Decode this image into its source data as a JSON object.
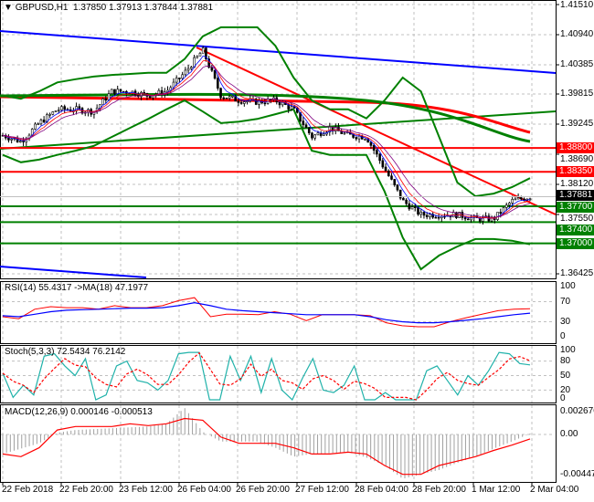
{
  "header": {
    "symbol": "GBPUSD,H1",
    "open": "1.37850",
    "high": "1.37913",
    "low": "1.37844",
    "close": "1.37881"
  },
  "price_axis": [
    "1.41510",
    "1.40940",
    "1.40385",
    "1.39815",
    "1.39245",
    "1.38690",
    "1.38120",
    "1.37550",
    "1.36425"
  ],
  "price_tags": [
    {
      "value": "1.38800",
      "color": "#ff0000"
    },
    {
      "value": "1.38350",
      "color": "#ff0000"
    },
    {
      "value": "1.37881",
      "color": "#000000"
    },
    {
      "value": "1.37700",
      "color": "#008000"
    },
    {
      "value": "1.37400",
      "color": "#008000"
    },
    {
      "value": "1.37000",
      "color": "#008000"
    }
  ],
  "time_axis": [
    "22 Feb 2018",
    "22 Feb 20:00",
    "23 Feb 12:00",
    "26 Feb 04:00",
    "26 Feb 20:00",
    "27 Feb 12:00",
    "28 Feb 04:00",
    "28 Feb 20:00",
    "1 Mar 12:00",
    "2 Mar 04:00"
  ],
  "rsi": {
    "label": "RSI(14) 55.4317  ->MA(18) 47.1977",
    "axis": [
      "100",
      "70",
      "30",
      "0"
    ]
  },
  "stoch": {
    "label": "Stoch(5,3,3) 72.5434 76.2142",
    "axis": [
      "100",
      "80",
      "50",
      "20",
      "0"
    ]
  },
  "macd": {
    "label": "MACD(12,26,9) 0.000146 -0.000513",
    "axis": [
      "0.002676",
      "0.00",
      "-0.004472"
    ]
  },
  "colors": {
    "bull": "#000000",
    "up_line": "#0000ff",
    "resistance": "#ff0000",
    "support": "#008000",
    "bands": "#008000"
  },
  "chart_data": {
    "type": "line",
    "close": [
      1.3904,
      1.3892,
      1.3927,
      1.3953,
      1.3953,
      1.3949,
      1.3987,
      1.3987,
      1.3979,
      1.3987,
      1.4022,
      1.4065,
      1.3979,
      1.397,
      1.3967,
      1.397,
      1.3953,
      1.3901,
      1.3918,
      1.3904,
      1.3901,
      1.3841,
      1.378,
      1.3754,
      1.3754,
      1.3754,
      1.3746,
      1.3746,
      1.378,
      1.3788
    ],
    "bollinger_upper": [
      1.3979,
      1.3973,
      1.3987,
      1.4004,
      1.401,
      1.4015,
      1.4018,
      1.402,
      1.4022,
      1.4022,
      1.4048,
      1.4091,
      1.4108,
      1.4108,
      1.4108,
      1.4073,
      1.4013,
      1.397,
      1.3953,
      1.3953,
      1.3936,
      1.397,
      1.4013,
      1.3987,
      1.3901,
      1.3815,
      1.3789,
      1.3794,
      1.3806,
      1.3823
    ],
    "bollinger_lower": [
      1.3867,
      1.3853,
      1.3858,
      1.3867,
      1.3875,
      1.3884,
      1.3901,
      1.3918,
      1.3935,
      1.3953,
      1.397,
      1.3949,
      1.3927,
      1.393,
      1.3935,
      1.3944,
      1.3953,
      1.3875,
      1.3867,
      1.3867,
      1.3867,
      1.3798,
      1.3711,
      1.3651,
      1.3677,
      1.3694,
      1.3708,
      1.3708,
      1.3705,
      1.3698
    ],
    "levels": {
      "resistance": [
        1.388,
        1.3835
      ],
      "support": [
        1.377,
        1.374,
        1.37
      ]
    },
    "rsi": [
      40,
      36,
      55,
      60,
      58,
      58,
      55,
      62,
      58,
      58,
      62,
      72,
      78,
      40,
      45,
      45,
      44,
      50,
      45,
      32,
      44,
      44,
      44,
      42,
      28,
      22,
      20,
      20,
      30,
      38,
      45,
      52,
      55,
      56
    ],
    "rsi_ma": [
      42,
      40,
      45,
      50,
      53,
      54,
      55,
      56,
      57,
      57,
      58,
      62,
      68,
      62,
      55,
      52,
      50,
      48,
      46,
      44,
      44,
      44,
      44,
      40,
      34,
      30,
      28,
      28,
      30,
      33,
      36,
      40,
      44,
      47
    ],
    "stoch_k": [
      55,
      5,
      30,
      10,
      90,
      95,
      70,
      50,
      85,
      0,
      10,
      70,
      80,
      40,
      35,
      20,
      40,
      95,
      98,
      98,
      0,
      0,
      90,
      40,
      90,
      15,
      85,
      20,
      0,
      45,
      85,
      20,
      15,
      30,
      70,
      0,
      0,
      15,
      0,
      0,
      0,
      60,
      70,
      40,
      10,
      50,
      30,
      60,
      98,
      95,
      75,
      72
    ],
    "macd_hist": [
      -2.2,
      -1.6,
      -1.0,
      0.2,
      0.5,
      0.6,
      0.7,
      0.8,
      0.9,
      1.2,
      3.0,
      0.3,
      -0.8,
      -0.8,
      -0.8,
      -1.5,
      -2.5,
      -2.2,
      -2.1,
      -2.0,
      -2.6,
      -3.5,
      -5.0,
      -4.5,
      -4.0,
      -3.2,
      -2.5,
      -1.6,
      -0.8,
      0.1
    ],
    "macd_signal": [
      -2.2,
      -2.5,
      -1.5,
      0.5,
      0.9,
      0.9,
      0.9,
      1.2,
      1.0,
      1.2,
      1.8,
      1.6,
      -0.3,
      -1.0,
      -1.0,
      -1.0,
      -1.5,
      -2.2,
      -2.2,
      -2.0,
      -2.2,
      -3.5,
      -4.5,
      -4.5,
      -3.5,
      -3.0,
      -2.5,
      -1.8,
      -1.2,
      -0.5
    ]
  }
}
